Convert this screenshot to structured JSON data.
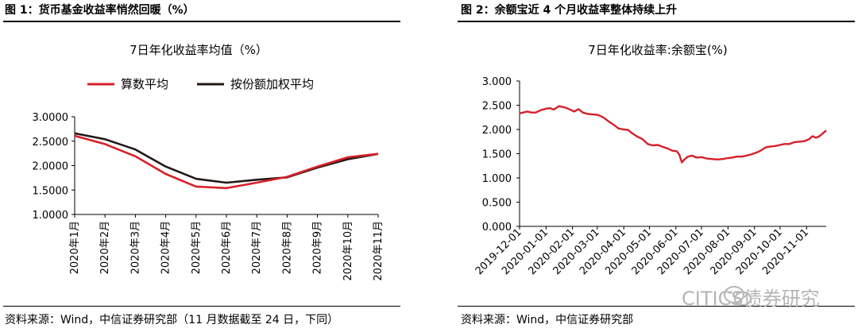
{
  "left_panel": {
    "figure_title": "图 1：货币基金收益率悄然回暖（%）",
    "source": "资料来源：Wind，中信证券研究部（11 月数据截至 24 日，下同）"
  },
  "right_panel": {
    "figure_title": "图 2：余额宝近 4 个月收益率整体持续上升",
    "source": "资料来源：Wind，中信证券研究部"
  },
  "watermark": {
    "text": "CITICS债券研究",
    "icon": "wechat-icon"
  },
  "chart_data": [
    {
      "type": "line",
      "title": "7日年化收益率均值（%）",
      "categories": [
        "2020年1月",
        "2020年2月",
        "2020年3月",
        "2020年4月",
        "2020年5月",
        "2020年6月",
        "2020年7月",
        "2020年8月",
        "2020年9月",
        "2020年10月",
        "2020年11月"
      ],
      "series": [
        {
          "name": "算数平均",
          "color": "#d7202a",
          "values": [
            2.61,
            2.44,
            2.19,
            1.83,
            1.57,
            1.54,
            1.65,
            1.77,
            1.98,
            2.17,
            2.24
          ]
        },
        {
          "name": "按份额加权平均",
          "color": "#231815",
          "values": [
            2.66,
            2.54,
            2.33,
            1.98,
            1.73,
            1.65,
            1.71,
            1.76,
            1.96,
            2.13,
            2.24
          ]
        }
      ],
      "ylim": [
        1.0,
        3.0
      ],
      "yticks": [
        "3.0000",
        "2.5000",
        "2.0000",
        "1.5000",
        "1.0000"
      ],
      "legend": "top",
      "grid": false
    },
    {
      "type": "line",
      "title": "7日年化收益率:余额宝(%)",
      "x_range": [
        "2019-12-01",
        "2020-11-24"
      ],
      "xticks": [
        "2019-12-01",
        "2020-01-01",
        "2020-02-01",
        "2020-03-01",
        "2020-04-01",
        "2020-05-01",
        "2020-06-01",
        "2020-07-01",
        "2020-08-01",
        "2020-09-01",
        "2020-10-01",
        "2020-11-01"
      ],
      "yticks": [
        "3.000",
        "2.500",
        "2.000",
        "1.500",
        "1.000",
        "0.500",
        "0.000"
      ],
      "ylim": [
        0.0,
        3.0
      ],
      "grid": false,
      "series": [
        {
          "name": "余额宝",
          "color": "#d7202a",
          "points": [
            [
              "2019-12-01",
              2.33
            ],
            [
              "2019-12-05",
              2.35
            ],
            [
              "2019-12-10",
              2.37
            ],
            [
              "2019-12-15",
              2.35
            ],
            [
              "2019-12-20",
              2.35
            ],
            [
              "2019-12-26",
              2.4
            ],
            [
              "2020-01-01",
              2.43
            ],
            [
              "2020-01-06",
              2.44
            ],
            [
              "2020-01-10",
              2.41
            ],
            [
              "2020-01-16",
              2.48
            ],
            [
              "2020-01-22",
              2.46
            ],
            [
              "2020-01-28",
              2.42
            ],
            [
              "2020-02-03",
              2.37
            ],
            [
              "2020-02-08",
              2.42
            ],
            [
              "2020-02-13",
              2.35
            ],
            [
              "2020-02-19",
              2.32
            ],
            [
              "2020-02-25",
              2.31
            ],
            [
              "2020-03-02",
              2.3
            ],
            [
              "2020-03-08",
              2.25
            ],
            [
              "2020-03-14",
              2.17
            ],
            [
              "2020-03-20",
              2.1
            ],
            [
              "2020-03-26",
              2.02
            ],
            [
              "2020-04-01",
              2.0
            ],
            [
              "2020-04-06",
              1.99
            ],
            [
              "2020-04-11",
              1.92
            ],
            [
              "2020-04-17",
              1.85
            ],
            [
              "2020-04-23",
              1.8
            ],
            [
              "2020-04-29",
              1.7
            ],
            [
              "2020-05-05",
              1.67
            ],
            [
              "2020-05-11",
              1.68
            ],
            [
              "2020-05-17",
              1.64
            ],
            [
              "2020-05-22",
              1.61
            ],
            [
              "2020-05-28",
              1.56
            ],
            [
              "2020-06-02",
              1.55
            ],
            [
              "2020-06-05",
              1.48
            ],
            [
              "2020-06-08",
              1.32
            ],
            [
              "2020-06-11",
              1.38
            ],
            [
              "2020-06-15",
              1.44
            ],
            [
              "2020-06-20",
              1.46
            ],
            [
              "2020-06-25",
              1.42
            ],
            [
              "2020-07-01",
              1.43
            ],
            [
              "2020-07-07",
              1.4
            ],
            [
              "2020-07-13",
              1.39
            ],
            [
              "2020-07-20",
              1.38
            ],
            [
              "2020-07-26",
              1.39
            ],
            [
              "2020-08-01",
              1.41
            ],
            [
              "2020-08-06",
              1.42
            ],
            [
              "2020-08-11",
              1.44
            ],
            [
              "2020-08-17",
              1.44
            ],
            [
              "2020-08-23",
              1.46
            ],
            [
              "2020-08-29",
              1.49
            ],
            [
              "2020-09-03",
              1.52
            ],
            [
              "2020-09-08",
              1.56
            ],
            [
              "2020-09-14",
              1.63
            ],
            [
              "2020-09-20",
              1.65
            ],
            [
              "2020-09-26",
              1.66
            ],
            [
              "2020-10-01",
              1.68
            ],
            [
              "2020-10-06",
              1.7
            ],
            [
              "2020-10-12",
              1.7
            ],
            [
              "2020-10-18",
              1.74
            ],
            [
              "2020-10-24",
              1.75
            ],
            [
              "2020-10-30",
              1.76
            ],
            [
              "2020-11-04",
              1.8
            ],
            [
              "2020-11-08",
              1.86
            ],
            [
              "2020-11-12",
              1.83
            ],
            [
              "2020-11-16",
              1.86
            ],
            [
              "2020-11-20",
              1.92
            ],
            [
              "2020-11-24",
              1.98
            ]
          ]
        }
      ]
    }
  ]
}
